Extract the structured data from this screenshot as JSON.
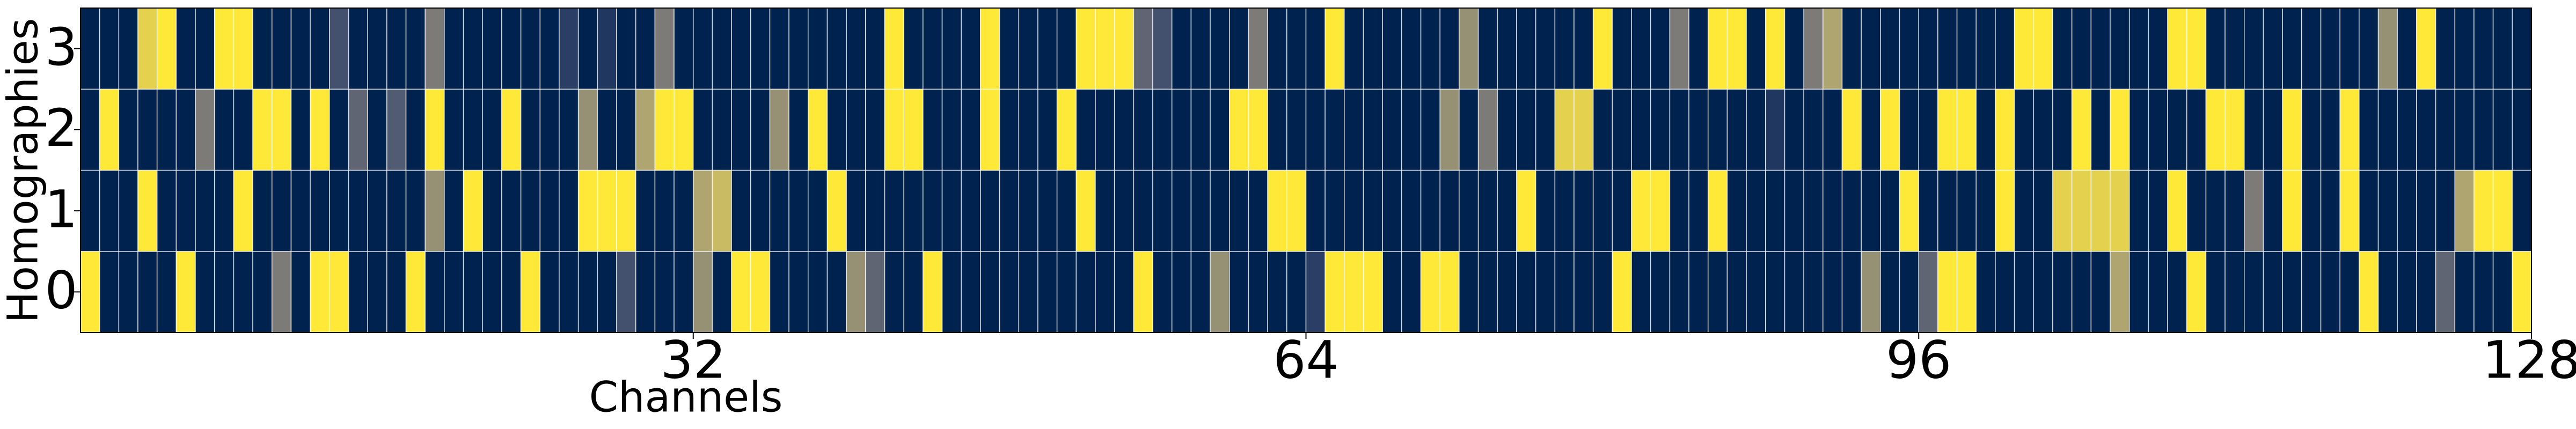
{
  "chart_data": {
    "type": "heatmap",
    "x_label": "Channels",
    "y_label": "Homographies",
    "xlim": [
      0,
      128
    ],
    "xticks": [
      32,
      64,
      96,
      128
    ],
    "y_categories": [
      "0",
      "1",
      "2",
      "3"
    ],
    "colormap": "cividis",
    "vlim": [
      0,
      1
    ],
    "z": [
      [
        1,
        0,
        0,
        0,
        0,
        1,
        0,
        0,
        0,
        0,
        0.5,
        0,
        1,
        1,
        0,
        0,
        0,
        1,
        0,
        0,
        0,
        0,
        0,
        1,
        0,
        0,
        0,
        0,
        0.3,
        0,
        0,
        0,
        0.6,
        0,
        1,
        1,
        0,
        0,
        0,
        0,
        0.6,
        0.4,
        0,
        0,
        1,
        0,
        0,
        0,
        0,
        0,
        0,
        0,
        0,
        0,
        0,
        1,
        0,
        0,
        0,
        0.6,
        0,
        0,
        0,
        0,
        0.2,
        1,
        1,
        1,
        0,
        0,
        1,
        1,
        0,
        0,
        0,
        0,
        0,
        0,
        0,
        0,
        1,
        0,
        0,
        0,
        0,
        0,
        0,
        0,
        0,
        0,
        0,
        0,
        0,
        0.6,
        0,
        0,
        0.4,
        1,
        1,
        0,
        0,
        0,
        0,
        0,
        0,
        0,
        0.7,
        0,
        0,
        0,
        1,
        0,
        0,
        0,
        0,
        0,
        0,
        0,
        0,
        1,
        0,
        0,
        0,
        0.4,
        0,
        0,
        0,
        1
      ],
      [
        0,
        0,
        0,
        1,
        0,
        0,
        0,
        0,
        1,
        0,
        0,
        0,
        0,
        0,
        0,
        0,
        0,
        0,
        0.6,
        0,
        1,
        0,
        0,
        0,
        0,
        0,
        1,
        1,
        1,
        0,
        0,
        0,
        0.7,
        0.8,
        0,
        0,
        0,
        0,
        0,
        1,
        0,
        0,
        0,
        0,
        0,
        0,
        0,
        0,
        0,
        0,
        0,
        0,
        1,
        0,
        0,
        0,
        0,
        0,
        0,
        0,
        0,
        0,
        1,
        1,
        0,
        0,
        0,
        0,
        0,
        0,
        0,
        0,
        0,
        0,
        0,
        1,
        0,
        0,
        0,
        0,
        0,
        1,
        1,
        0,
        0,
        1,
        0,
        0,
        0,
        0,
        0,
        0,
        0,
        0,
        0,
        1,
        0,
        0,
        0,
        0,
        1,
        0,
        0,
        0.9,
        0.9,
        0.9,
        0.9,
        0,
        0,
        1,
        0,
        0,
        0,
        0.5,
        0,
        1,
        0,
        0,
        1,
        0,
        0,
        0,
        0,
        0,
        0.7,
        1,
        1,
        0
      ],
      [
        0,
        1,
        0,
        0,
        0,
        0,
        0.5,
        0,
        0,
        1,
        1,
        0,
        1,
        0,
        0.4,
        0,
        0.35,
        0,
        1,
        0,
        0,
        0,
        1,
        0,
        0,
        0,
        0.6,
        0,
        0,
        0.7,
        1,
        1,
        0,
        0,
        0,
        0,
        0.6,
        0,
        1,
        0,
        0,
        0,
        1,
        1,
        0,
        0,
        0,
        1,
        0,
        0,
        0,
        1,
        0,
        0,
        0,
        0,
        0,
        0,
        0,
        0,
        1,
        1,
        0,
        0,
        0,
        0,
        0,
        0,
        0,
        0,
        0,
        0.6,
        0,
        0.5,
        0,
        0,
        0,
        0.9,
        0.9,
        0,
        0,
        0,
        0,
        0,
        0,
        0,
        0,
        0,
        0.15,
        0,
        0,
        0,
        1,
        0,
        1,
        0,
        0,
        1,
        1,
        0,
        1,
        0,
        0,
        0,
        1,
        0,
        1,
        0,
        0,
        0,
        0,
        1,
        1,
        0,
        0,
        1,
        0,
        0,
        1,
        0,
        0,
        0,
        0,
        0,
        0,
        0,
        0,
        0
      ],
      [
        0,
        0,
        0,
        0.9,
        1,
        0,
        0,
        1,
        1,
        0,
        0,
        0,
        0,
        0.3,
        0,
        0,
        0,
        0,
        0.5,
        0,
        0,
        0,
        0,
        0,
        0,
        0.2,
        0,
        0.15,
        0,
        0,
        0.5,
        0,
        0,
        0,
        0,
        0,
        0,
        0,
        0,
        0,
        0,
        0,
        1,
        0,
        0,
        0,
        0,
        1,
        0,
        0,
        0,
        0,
        1,
        1,
        1,
        0.4,
        0.3,
        0,
        0,
        0,
        0,
        0.5,
        0,
        0,
        0,
        1,
        0,
        0,
        0,
        0,
        0,
        0,
        0.6,
        0,
        0,
        0,
        0,
        0,
        0,
        1,
        0,
        0,
        0,
        0.5,
        0,
        1,
        1,
        0,
        1,
        0,
        0.5,
        0.7,
        0,
        0,
        0,
        0,
        0,
        0,
        0,
        0,
        0,
        1,
        1,
        0,
        0,
        0,
        0,
        0,
        0,
        1,
        1,
        0,
        0,
        0,
        0,
        0,
        0,
        0,
        0,
        0,
        0.6,
        0,
        1,
        0,
        0,
        0,
        0,
        0
      ]
    ]
  }
}
